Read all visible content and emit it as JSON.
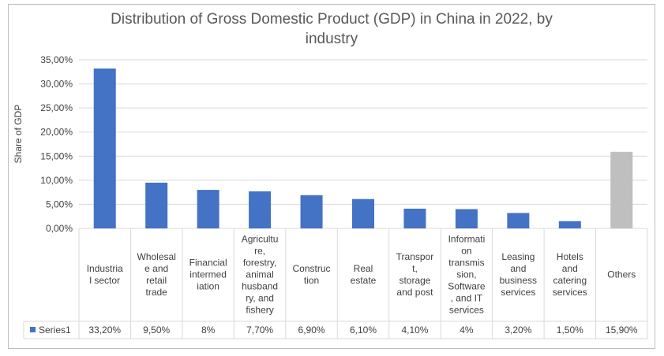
{
  "chart_data": {
    "type": "bar",
    "title_line1": "Distribution of Gross Domestic Product (GDP) in China in 2022, by",
    "title_line2": "industry",
    "ylabel": "Share of GDP",
    "ylim": [
      0,
      35
    ],
    "yticks": [
      0,
      5,
      10,
      15,
      20,
      25,
      30,
      35
    ],
    "ytick_labels": [
      "0,00%",
      "5,00%",
      "10,00%",
      "15,00%",
      "20,00%",
      "25,00%",
      "30,00%",
      "35,00%"
    ],
    "categories": [
      [
        "Industria",
        "l sector"
      ],
      [
        "Wholesal",
        "e and",
        "retail",
        "trade"
      ],
      [
        "Financial",
        "intermed",
        "iation"
      ],
      [
        "Agricultu",
        "re,",
        "forestry,",
        "animal",
        "husband",
        "ry, and",
        "fishery"
      ],
      [
        "Construc",
        "tion"
      ],
      [
        "Real",
        "estate"
      ],
      [
        "Transpor",
        "t,",
        "storage",
        "and post"
      ],
      [
        "Informati",
        "on",
        "transmis",
        "sion,",
        "Software",
        ", and IT",
        "services"
      ],
      [
        "Leasing",
        "and",
        "business",
        "services"
      ],
      [
        "Hotels",
        "and",
        "catering",
        "services"
      ],
      [
        "Others"
      ]
    ],
    "series": [
      {
        "name": "Series1",
        "values": [
          33.2,
          9.5,
          8,
          7.7,
          6.9,
          6.1,
          4.1,
          4,
          3.2,
          1.5,
          15.9
        ],
        "value_labels": [
          "33,20%",
          "9,50%",
          "8%",
          "7,70%",
          "6,90%",
          "6,10%",
          "4,10%",
          "4%",
          "3,20%",
          "1,50%",
          "15,90%"
        ]
      }
    ],
    "colors": {
      "bar": "#4472c4",
      "highlight": "#bfbfbf",
      "grid": "#d9d9d9",
      "text": "#404040"
    },
    "highlight_category_index": 10,
    "legend": "bottom data table"
  }
}
